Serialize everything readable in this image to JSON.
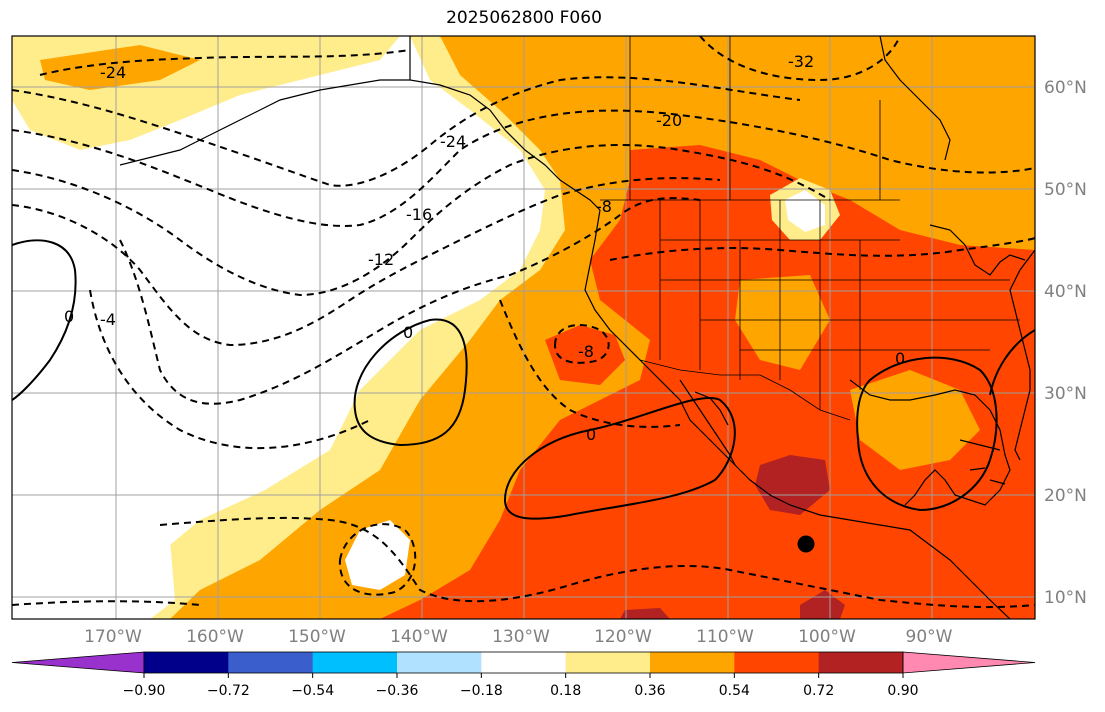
{
  "title": "2025062800 F060",
  "colors": {
    "background": "#ffffff",
    "land_outline": "#000000",
    "grid": "#a0a0a0",
    "marker": "#000000"
  },
  "map": {
    "lat_labels": [
      "60°N",
      "50°N",
      "40°N",
      "30°N",
      "20°N",
      "10°N"
    ],
    "lon_labels": [
      "170°W",
      "160°W",
      "150°W",
      "140°W",
      "130°W",
      "120°W",
      "110°W",
      "100°W",
      "90°W"
    ],
    "contour_labels": [
      "-32",
      "-24",
      "-20",
      "-24",
      "-16",
      "-12",
      "-8",
      "-8",
      "-4",
      "0",
      "0",
      "0",
      "0"
    ],
    "marker": "black dot"
  },
  "colorbar": {
    "tick_labels": [
      "−0.90",
      "−0.72",
      "−0.54",
      "−0.36",
      "−0.18",
      "0.18",
      "0.36",
      "0.54",
      "0.72",
      "0.90"
    ],
    "colors": [
      "#9932cc",
      "#00008b",
      "#3a5fcd",
      "#00bfff",
      "#b0e2ff",
      "#ffffff",
      "#ffec8b",
      "#ffa500",
      "#ff4500",
      "#b22222",
      "#ff89b0"
    ]
  }
}
